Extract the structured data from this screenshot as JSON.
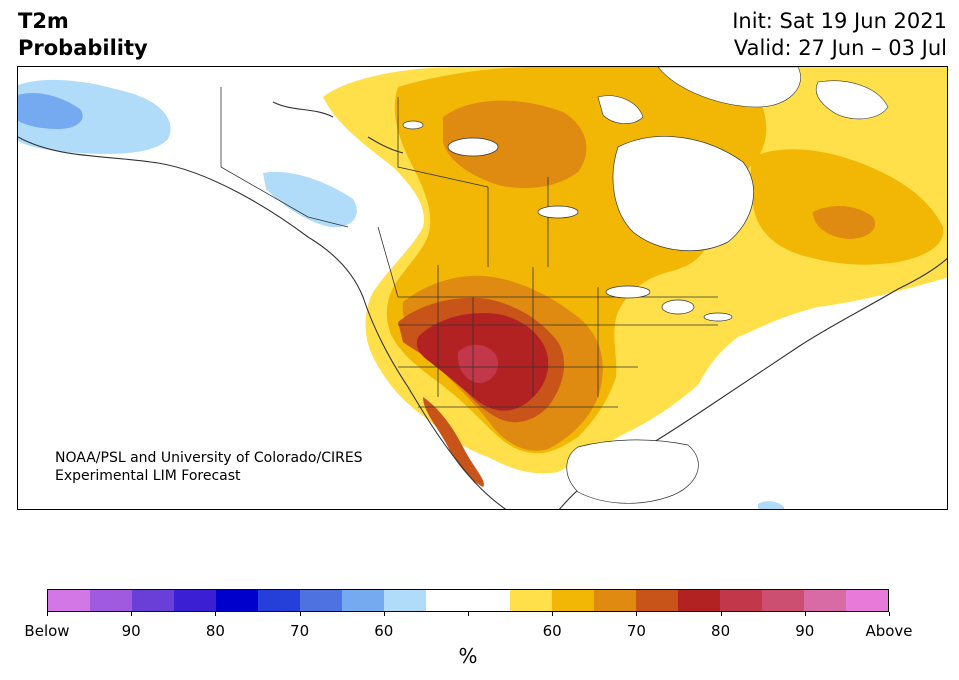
{
  "title": {
    "left_line1": "T2m",
    "left_line2": "Probability",
    "right_line1": "Init: Sat 19 Jun 2021",
    "right_line2": "Valid: 27 Jun – 03 Jul"
  },
  "credit": {
    "line1": "NOAA/PSL and University of Colorado/CIRES",
    "line2": "Experimental LIM Forecast"
  },
  "colorbar": {
    "unit": "%",
    "colors": [
      "#d376e6",
      "#a05ae0",
      "#6a3fd8",
      "#3a1fd3",
      "#0000cc",
      "#2540d8",
      "#4e73e0",
      "#76aaf0",
      "#b0dcfa",
      "#ffffff",
      "#ffffff",
      "#ffe04a",
      "#f2b705",
      "#df8a10",
      "#c9541a",
      "#b22222",
      "#c2384a",
      "#cc4f72",
      "#d86aa6",
      "#e87ada"
    ],
    "tick_labels": [
      "Below",
      "90",
      "80",
      "70",
      "60",
      "",
      "60",
      "70",
      "80",
      "90",
      "Above"
    ]
  },
  "legend_categories": {
    "below": "Below",
    "above": "Above"
  }
}
